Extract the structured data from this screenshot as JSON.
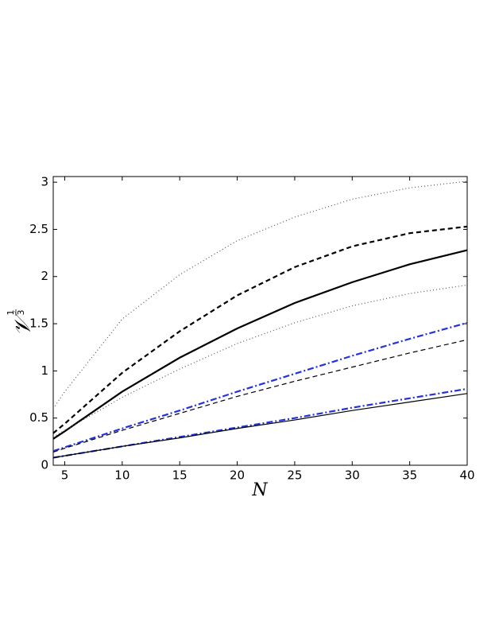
{
  "chart_data": {
    "type": "line",
    "xlabel": "N",
    "ylabel": "𝒱",
    "ylabel_exponent": [
      "1",
      "3"
    ],
    "x": [
      4,
      5,
      10,
      15,
      20,
      25,
      30,
      35,
      40
    ],
    "xlim": [
      4,
      40
    ],
    "xticks": [
      5,
      10,
      15,
      20,
      25,
      30,
      35,
      40
    ],
    "ylim": [
      0,
      3.06
    ],
    "yticks": [
      0,
      0.5,
      1,
      1.5,
      2,
      2.5,
      3
    ],
    "grid": false,
    "series": [
      {
        "color": "#555555",
        "style": "dotted",
        "weight": "thin",
        "values": [
          0.6,
          0.78,
          1.55,
          2.02,
          2.38,
          2.63,
          2.82,
          2.94,
          3.01
        ]
      },
      {
        "color": "#000000",
        "style": "dashed",
        "weight": "thick",
        "values": [
          0.34,
          0.44,
          0.98,
          1.42,
          1.8,
          2.1,
          2.32,
          2.46,
          2.53
        ]
      },
      {
        "color": "#000000",
        "style": "solid",
        "weight": "thick",
        "values": [
          0.28,
          0.36,
          0.78,
          1.14,
          1.45,
          1.72,
          1.94,
          2.13,
          2.28
        ]
      },
      {
        "color": "#555555",
        "style": "dotted",
        "weight": "thin",
        "values": [
          0.3,
          0.37,
          0.72,
          1.02,
          1.29,
          1.51,
          1.69,
          1.82,
          1.91
        ]
      },
      {
        "color": "#2233dd",
        "style": "dashdot",
        "weight": "thick",
        "values": [
          0.15,
          0.19,
          0.39,
          0.58,
          0.78,
          0.97,
          1.16,
          1.34,
          1.51
        ]
      },
      {
        "color": "#000000",
        "style": "dashed",
        "weight": "thin",
        "values": [
          0.14,
          0.18,
          0.37,
          0.55,
          0.73,
          0.89,
          1.04,
          1.19,
          1.33
        ]
      },
      {
        "color": "#2233dd",
        "style": "dashdot",
        "weight": "thick",
        "values": [
          0.08,
          0.1,
          0.2,
          0.3,
          0.4,
          0.5,
          0.61,
          0.71,
          0.81
        ]
      },
      {
        "color": "#000000",
        "style": "solid",
        "weight": "thin",
        "values": [
          0.08,
          0.1,
          0.2,
          0.29,
          0.39,
          0.48,
          0.58,
          0.67,
          0.76
        ]
      }
    ]
  }
}
